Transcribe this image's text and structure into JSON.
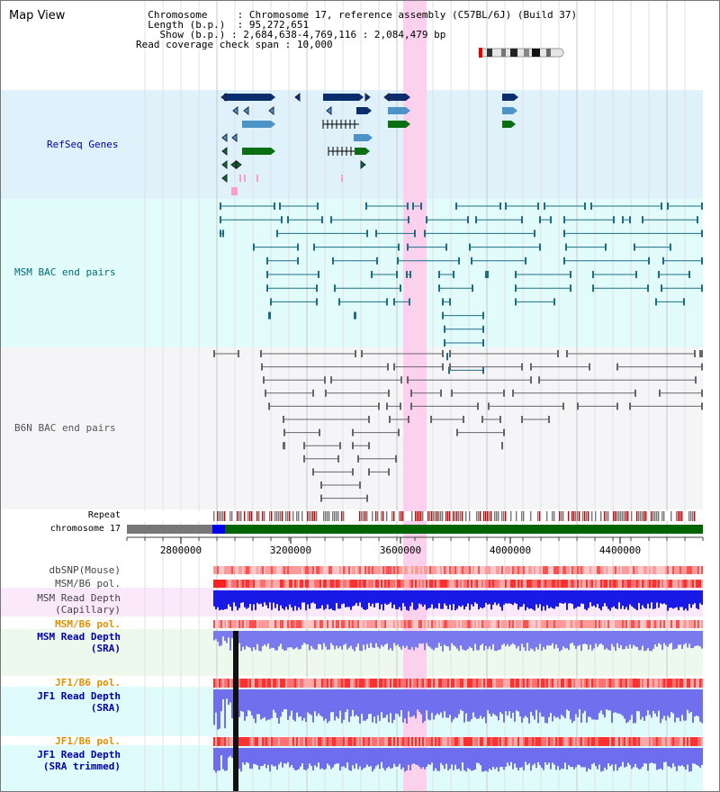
{
  "title": "Map View",
  "header": {
    "chromosome_label": "Chromosome",
    "chromosome_value": "Chromosome 17, reference assembly (C57BL/6J) (Build 37)",
    "length_label": "Length (b.p.)",
    "length_value": "95,272,651",
    "show_label": "Show (b.p.)",
    "show_value": "2,684,638-4,769,116 : 2,084,479 bp",
    "span_label": "Read coverage check span",
    "span_value": "10,000"
  },
  "tracks": {
    "refseq": "RefSeq Genes",
    "msm_bac": "MSM BAC end pairs",
    "b6n_bac": "B6N BAC end pairs",
    "repeat": "Repeat",
    "chromosome": "chromosome 17",
    "dbsnp": "dbSNP(Mouse)",
    "msm_b6_pol_1": "MSM/B6 pol.",
    "msm_read_depth_cap_1": "MSM Read Depth",
    "msm_read_depth_cap_2": "(Capillary)",
    "msm_b6_pol_2": "MSM/B6 pol.",
    "msm_read_depth_sra_1": "MSM Read Depth",
    "msm_read_depth_sra_2": "(SRA)",
    "jf1_b6_pol_1": "JF1/B6 pol.",
    "jf1_read_depth_1": "JF1 Read Depth",
    "jf1_read_depth_2": "(SRA)",
    "jf1_b6_pol_2": "JF1/B6 pol.",
    "jf1_read_depth_trim_1": "JF1 Read Depth",
    "jf1_read_depth_trim_2": "(SRA trimmed)"
  },
  "axis": {
    "ticks": [
      "2800000",
      "3200000",
      "3600000",
      "4000000",
      "4400000"
    ]
  },
  "colors": {
    "refseq_label": "#0000aa",
    "msm_bac_label": "#006c7a",
    "b6n_bac_label": "#555555",
    "orange_label": "#e09000",
    "blue_label": "#0000aa",
    "highlight": "#ffd0ee"
  }
}
